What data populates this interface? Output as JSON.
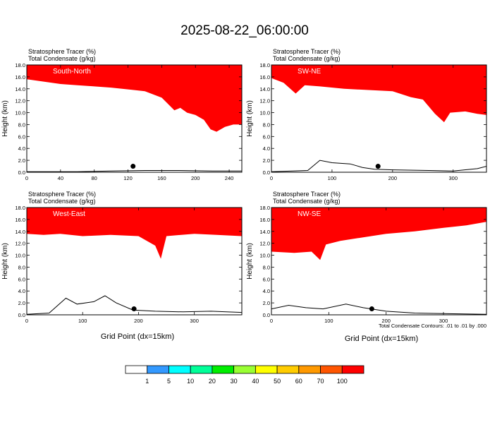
{
  "figure": {
    "title": "2025-08-22_06:00:00",
    "contour_note": "Total Condensate Contours: .01 to .01 by .000"
  },
  "chart_data": [
    {
      "type": "heatmap",
      "panel": "South-North",
      "header": [
        "Stratosphere Tracer   (%)",
        "Total Condensate   (g/kg)"
      ],
      "ylabel": "Height (km)",
      "xlabel": "",
      "xlim": [
        0,
        255
      ],
      "ylim": [
        0,
        18
      ],
      "xticks": [
        0,
        40,
        80,
        120,
        160,
        200,
        240
      ],
      "yticks": [
        "0.0",
        "2.0",
        "4.0",
        "6.0",
        "8.0",
        "10.0",
        "12.0",
        "14.0",
        "16.0",
        "18.0"
      ],
      "tracer_base_km": [
        [
          0,
          15.6
        ],
        [
          20,
          15.2
        ],
        [
          40,
          14.8
        ],
        [
          60,
          14.6
        ],
        [
          80,
          14.4
        ],
        [
          100,
          14.2
        ],
        [
          120,
          13.9
        ],
        [
          140,
          13.6
        ],
        [
          160,
          12.5
        ],
        [
          175,
          10.4
        ],
        [
          182,
          10.8
        ],
        [
          190,
          10.0
        ],
        [
          200,
          9.6
        ],
        [
          210,
          8.8
        ],
        [
          218,
          7.2
        ],
        [
          225,
          6.8
        ],
        [
          235,
          7.6
        ],
        [
          245,
          8.0
        ],
        [
          255,
          8.0
        ]
      ],
      "terrain_km": [
        [
          0,
          0.1
        ],
        [
          60,
          0.1
        ],
        [
          100,
          0.2
        ],
        [
          140,
          0.3
        ],
        [
          180,
          0.3
        ],
        [
          220,
          0.2
        ],
        [
          255,
          0.2
        ]
      ],
      "marker": {
        "x": 126,
        "y_km": 1.0
      }
    },
    {
      "type": "heatmap",
      "panel": "SW-NE",
      "header": [
        "Stratosphere Tracer   (%)",
        "Total Condensate   (g/kg)"
      ],
      "ylabel": "Height (km)",
      "xlabel": "",
      "xlim": [
        0,
        355
      ],
      "ylim": [
        0,
        18
      ],
      "xticks": [
        0,
        100,
        200,
        300
      ],
      "yticks": [
        "0.0",
        "2.0",
        "4.0",
        "6.0",
        "8.0",
        "10.0",
        "12.0",
        "14.0",
        "16.0",
        "18.0"
      ],
      "tracer_base_km": [
        [
          0,
          15.8
        ],
        [
          20,
          15.0
        ],
        [
          40,
          13.2
        ],
        [
          55,
          14.6
        ],
        [
          80,
          14.4
        ],
        [
          120,
          14.0
        ],
        [
          160,
          13.8
        ],
        [
          200,
          13.6
        ],
        [
          230,
          12.6
        ],
        [
          250,
          12.2
        ],
        [
          270,
          9.8
        ],
        [
          285,
          8.4
        ],
        [
          295,
          10.0
        ],
        [
          320,
          10.2
        ],
        [
          340,
          9.8
        ],
        [
          355,
          9.6
        ]
      ],
      "terrain_km": [
        [
          0,
          0.1
        ],
        [
          60,
          0.3
        ],
        [
          80,
          2.0
        ],
        [
          100,
          1.6
        ],
        [
          130,
          1.4
        ],
        [
          150,
          0.8
        ],
        [
          170,
          0.5
        ],
        [
          200,
          0.4
        ],
        [
          260,
          0.3
        ],
        [
          300,
          0.2
        ],
        [
          340,
          0.6
        ],
        [
          355,
          1.0
        ]
      ],
      "marker": {
        "x": 176,
        "y_km": 1.0
      }
    },
    {
      "type": "heatmap",
      "panel": "West-East",
      "header": [
        "Stratosphere Tracer   (%)",
        "Total Condensate   (g/kg)"
      ],
      "ylabel": "Height (km)",
      "xlabel": "",
      "xlim": [
        0,
        385
      ],
      "ylim": [
        0,
        18
      ],
      "xticks": [
        0,
        100,
        200,
        300
      ],
      "yticks": [
        "0.0",
        "2.0",
        "4.0",
        "6.0",
        "8.0",
        "10.0",
        "12.0",
        "14.0",
        "16.0",
        "18.0"
      ],
      "tracer_base_km": [
        [
          0,
          13.6
        ],
        [
          30,
          13.4
        ],
        [
          60,
          13.6
        ],
        [
          100,
          13.2
        ],
        [
          150,
          13.4
        ],
        [
          200,
          13.2
        ],
        [
          230,
          11.6
        ],
        [
          240,
          9.4
        ],
        [
          250,
          13.2
        ],
        [
          300,
          13.6
        ],
        [
          340,
          13.4
        ],
        [
          385,
          13.2
        ]
      ],
      "terrain_km": [
        [
          0,
          0.1
        ],
        [
          40,
          0.3
        ],
        [
          70,
          2.8
        ],
        [
          90,
          1.8
        ],
        [
          120,
          2.2
        ],
        [
          140,
          3.2
        ],
        [
          160,
          2.0
        ],
        [
          190,
          0.8
        ],
        [
          230,
          0.6
        ],
        [
          280,
          0.5
        ],
        [
          330,
          0.6
        ],
        [
          385,
          0.4
        ]
      ],
      "marker": {
        "x": 192,
        "y_km": 1.0
      }
    },
    {
      "type": "heatmap",
      "panel": "NW-SE",
      "header": [
        "Stratosphere Tracer   (%)",
        "Total Condensate   (g/kg)"
      ],
      "ylabel": "Height (km)",
      "xlabel": "Grid Point (dx=15km)",
      "xlim": [
        0,
        375
      ],
      "ylim": [
        0,
        18
      ],
      "xticks": [
        0,
        100,
        200,
        300
      ],
      "yticks": [
        "0.0",
        "2.0",
        "4.0",
        "6.0",
        "8.0",
        "10.0",
        "12.0",
        "14.0",
        "16.0",
        "18.0"
      ],
      "tracer_base_km": [
        [
          0,
          10.6
        ],
        [
          40,
          10.4
        ],
        [
          70,
          10.6
        ],
        [
          85,
          9.2
        ],
        [
          95,
          11.8
        ],
        [
          120,
          12.4
        ],
        [
          160,
          13.0
        ],
        [
          200,
          13.6
        ],
        [
          250,
          14.0
        ],
        [
          300,
          14.6
        ],
        [
          340,
          15.0
        ],
        [
          375,
          15.6
        ]
      ],
      "terrain_km": [
        [
          0,
          1.0
        ],
        [
          30,
          1.6
        ],
        [
          60,
          1.2
        ],
        [
          90,
          1.0
        ],
        [
          130,
          1.8
        ],
        [
          160,
          1.2
        ],
        [
          200,
          0.6
        ],
        [
          250,
          0.3
        ],
        [
          300,
          0.2
        ],
        [
          375,
          0.1
        ]
      ],
      "marker": {
        "x": 175,
        "y_km": 1.0
      }
    }
  ],
  "west_east_xlabel": "Grid Point (dx=15km)",
  "colorbar": {
    "labels": [
      "1",
      "5",
      "10",
      "20",
      "30",
      "40",
      "50",
      "60",
      "70",
      "100"
    ],
    "colors": [
      "#ffffff",
      "#3399ff",
      "#00ffff",
      "#00ff99",
      "#00ee00",
      "#99ff33",
      "#ffff00",
      "#ffcc00",
      "#ff9900",
      "#ff5500",
      "#ff0000"
    ]
  }
}
